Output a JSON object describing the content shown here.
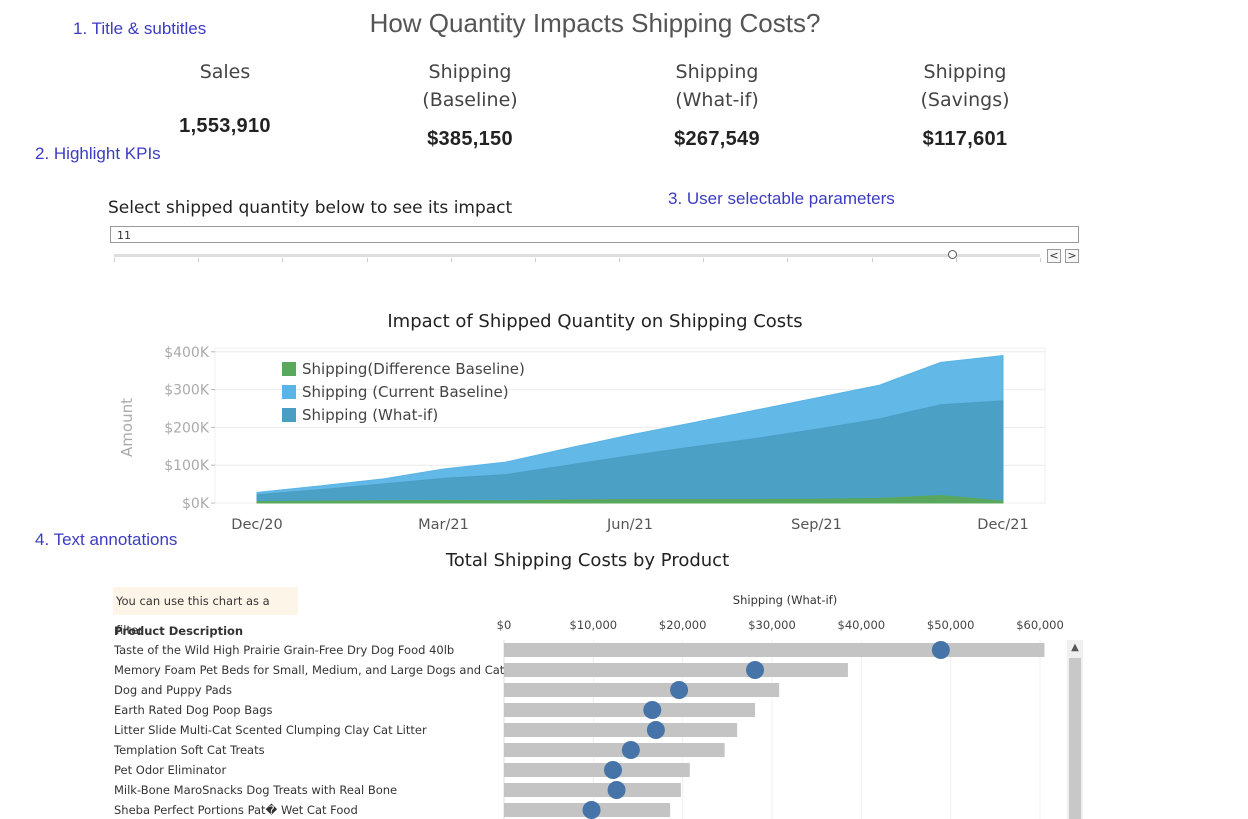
{
  "annotations": {
    "a1": "1. Title & subtitles",
    "a2": "2. Highlight KPIs",
    "a3": "3. User selectable parameters",
    "a4": "4. Text annotations"
  },
  "title": "How Quantity Impacts Shipping Costs?",
  "kpis": [
    {
      "label1": "Sales",
      "label2": "",
      "value": "1,553,910"
    },
    {
      "label1": "Shipping",
      "label2": "(Baseline)",
      "value": "$385,150"
    },
    {
      "label1": "Shipping",
      "label2": "(What-if)",
      "value": "$267,549"
    },
    {
      "label1": "Shipping",
      "label2": "(Savings)",
      "value": "$117,601"
    }
  ],
  "parameter": {
    "title": "Select shipped quantity below to see its impact",
    "value": "11",
    "slider_fraction": 0.905,
    "prev_label": "<",
    "next_label": ">"
  },
  "colors": {
    "current_baseline": "#5ab4e5",
    "what_if": "#4a9ec4",
    "difference": "#5aa85a",
    "bar": "#c4c4c4",
    "dot": "#4673a8",
    "annotation": "#3b3bc4"
  },
  "chart_data": [
    {
      "type": "area",
      "title": "Impact of Shipped Quantity on Shipping Costs",
      "xlabel": "",
      "ylabel": "Amount",
      "x": [
        "Dec/20",
        "Jan/21",
        "Feb/21",
        "Mar/21",
        "Apr/21",
        "May/21",
        "Jun/21",
        "Jul/21",
        "Aug/21",
        "Sep/21",
        "Oct/21",
        "Nov/21",
        "Dec/21"
      ],
      "x_ticks": [
        "Dec/20",
        "Mar/21",
        "Jun/21",
        "Sep/21",
        "Dec/21"
      ],
      "y_ticks": [
        "$0K",
        "$100K",
        "$200K",
        "$300K",
        "$400K"
      ],
      "ylim": [
        0,
        410000
      ],
      "legend_position": "top-left",
      "series": [
        {
          "name": "Shipping(Difference Baseline)",
          "color": "#5aa85a",
          "values": [
            4000,
            5000,
            6000,
            7000,
            6000,
            8000,
            9000,
            9000,
            9000,
            10000,
            12000,
            20000,
            5000
          ]
        },
        {
          "name": "Shipping (Current Baseline)",
          "color": "#5ab4e5",
          "values": [
            28000,
            45000,
            63000,
            90000,
            108000,
            145000,
            180000,
            212000,
            245000,
            278000,
            311000,
            372000,
            390000
          ]
        },
        {
          "name": "Shipping (What-if)",
          "color": "#4a9ec4",
          "values": [
            22000,
            35000,
            50000,
            65000,
            75000,
            100000,
            125000,
            148000,
            170000,
            195000,
            222000,
            260000,
            270000
          ]
        }
      ],
      "grid": true
    },
    {
      "type": "bar",
      "title": "Total Shipping Costs by Product",
      "note": "You can use this chart as a filter",
      "category_header": "Product Description",
      "xlabel": "Shipping (What-if)",
      "x_ticks": [
        "$0",
        "$10,000",
        "$20,000",
        "$30,000",
        "$40,000",
        "$50,000",
        "$60,000"
      ],
      "xlim": [
        0,
        60000
      ],
      "categories": [
        "Taste of the Wild High Prairie Grain-Free Dry Dog Food 40lb",
        "Memory Foam Pet Beds for Small, Medium, and Large Dogs and Cats",
        "Dog and Puppy Pads",
        "Earth Rated Dog Poop Bags",
        "Litter Slide Multi-Cat Scented Clumping Clay Cat Litter",
        "Templation Soft Cat Treats",
        "Pet Odor Eliminator",
        "Milk-Bone MaroSnacks Dog Treats with Real Bone",
        "Sheba Perfect Portions Pat� Wet Cat Food"
      ],
      "series": [
        {
          "name": "Shipping (Baseline)",
          "values": [
            60500,
            38500,
            30800,
            28100,
            26100,
            24700,
            20800,
            19800,
            18600
          ]
        },
        {
          "name": "Shipping (What-if)",
          "values": [
            48900,
            28100,
            19600,
            16600,
            17000,
            14200,
            12200,
            12600,
            9800
          ]
        }
      ]
    }
  ]
}
